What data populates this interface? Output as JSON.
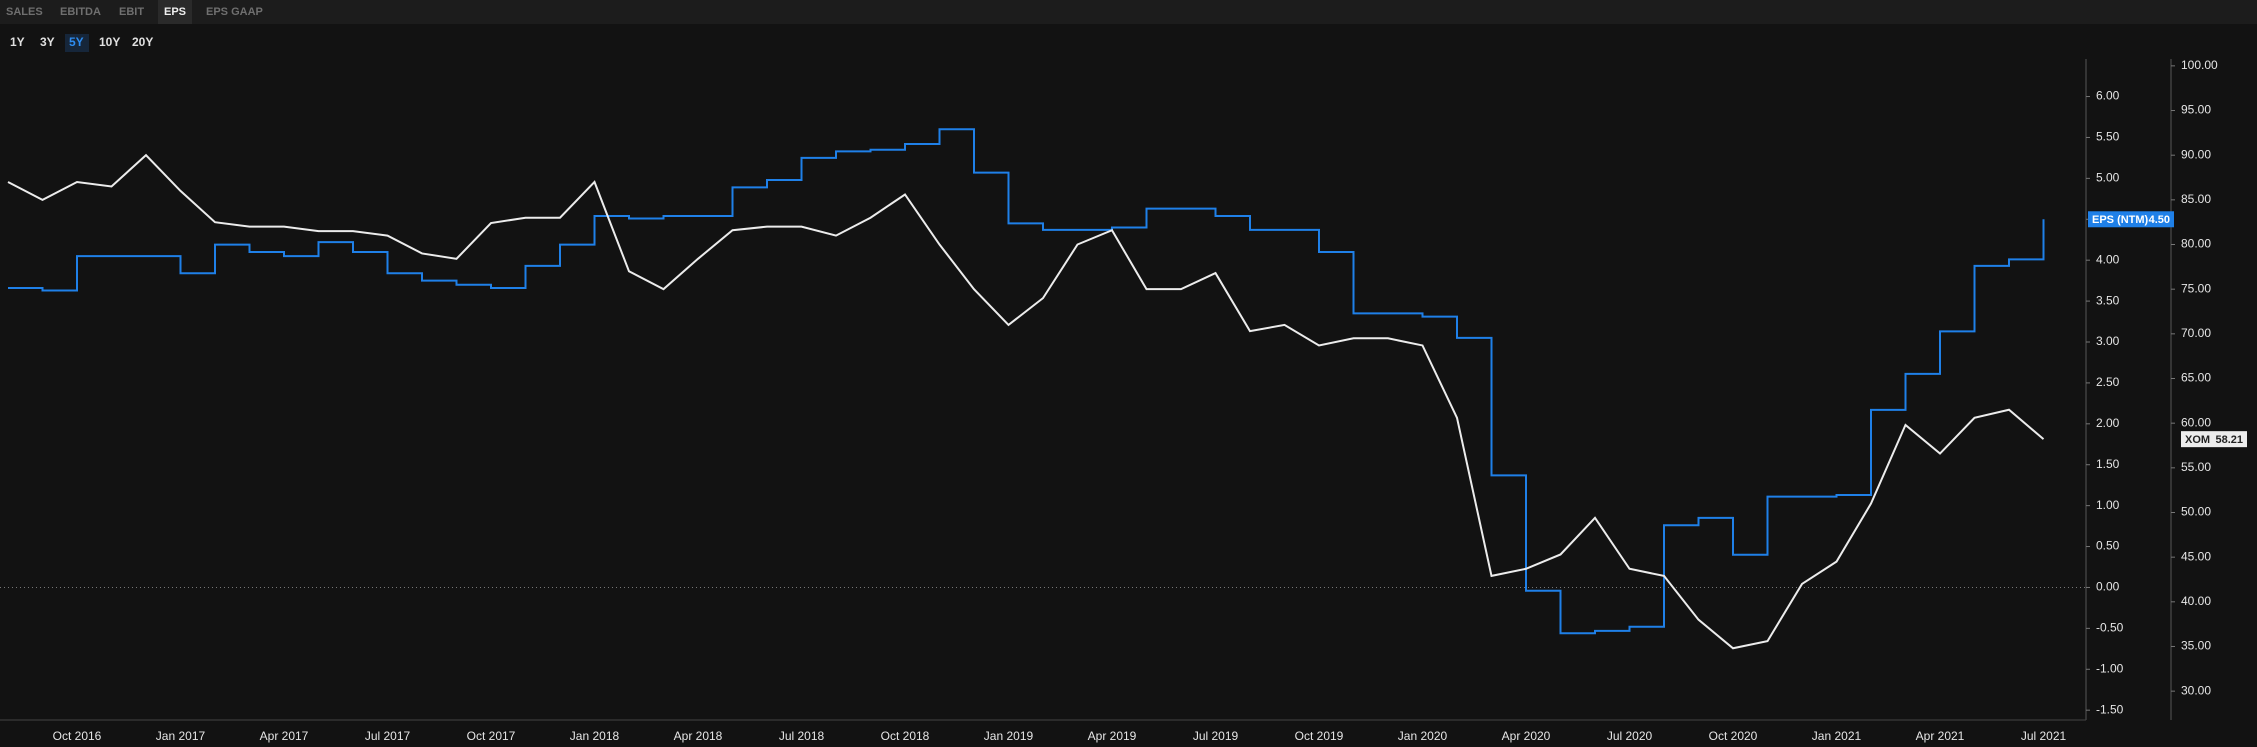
{
  "tabs": [
    {
      "label": "SALES"
    },
    {
      "label": "EBITDA"
    },
    {
      "label": "EBIT"
    },
    {
      "label": "EPS",
      "active": true
    },
    {
      "label": "EPS GAAP"
    }
  ],
  "periods": [
    {
      "label": "1Y"
    },
    {
      "label": "3Y"
    },
    {
      "label": "5Y",
      "active": true
    },
    {
      "label": "10Y"
    },
    {
      "label": "20Y"
    }
  ],
  "chart_data": {
    "type": "line",
    "zero_line": true,
    "categories": [
      null,
      null,
      "Oct 2016",
      null,
      null,
      "Jan 2017",
      null,
      null,
      "Apr 2017",
      null,
      null,
      "Jul 2017",
      null,
      null,
      "Oct 2017",
      null,
      null,
      "Jan 2018",
      null,
      null,
      "Apr 2018",
      null,
      null,
      "Jul 2018",
      null,
      null,
      "Oct 2018",
      null,
      null,
      "Jan 2019",
      null,
      null,
      "Apr 2019",
      null,
      null,
      "Jul 2019",
      null,
      null,
      "Oct 2019",
      null,
      null,
      "Jan 2020",
      null,
      null,
      "Apr 2020",
      null,
      null,
      "Jul 2020",
      null,
      null,
      "Oct 2020",
      null,
      null,
      "Jan 2021",
      null,
      null,
      "Apr 2021",
      null,
      null,
      "Jul 2021"
    ],
    "series": [
      {
        "name": "EPS (NTM)",
        "color": "#1f80e8",
        "step": true,
        "tag_text_color": "#ffffff",
        "values": [
          3.66,
          3.63,
          4.05,
          4.05,
          4.05,
          3.84,
          4.19,
          4.1,
          4.05,
          4.22,
          4.1,
          3.84,
          3.75,
          3.7,
          3.66,
          3.93,
          4.19,
          4.54,
          4.51,
          4.54,
          4.54,
          4.89,
          4.98,
          5.25,
          5.33,
          5.35,
          5.42,
          5.6,
          5.07,
          4.45,
          4.37,
          4.37,
          4.4,
          4.63,
          4.63,
          4.54,
          4.37,
          4.37,
          4.1,
          3.35,
          3.35,
          3.31,
          3.05,
          1.37,
          -0.04,
          -0.56,
          -0.53,
          -0.48,
          0.76,
          0.85,
          0.4,
          1.11,
          1.11,
          1.13,
          2.17,
          2.61,
          3.13,
          3.93,
          4.01,
          4.5
        ],
        "value_labels": [
          null,
          null,
          null,
          null,
          null,
          null,
          null,
          null,
          null,
          null,
          null,
          null,
          null,
          null,
          null,
          null,
          null,
          null,
          null,
          null,
          null,
          null,
          null,
          null,
          null,
          null,
          null,
          null,
          null,
          null,
          null,
          null,
          null,
          null,
          null,
          null,
          null,
          null,
          null,
          null,
          null,
          null,
          null,
          null,
          null,
          null,
          null,
          null,
          null,
          null,
          null,
          null,
          null,
          null,
          null,
          null,
          null,
          null,
          null,
          "4.50"
        ]
      },
      {
        "name": "XOM",
        "color": "#ececec",
        "axis": "y2",
        "tag_text_color": "#222222",
        "values": [
          87,
          85,
          87,
          86.5,
          90,
          86,
          82.5,
          82,
          82,
          81.5,
          81.5,
          81,
          79,
          78.4,
          82.4,
          83,
          83,
          87,
          77,
          75,
          78.4,
          81.6,
          82,
          82,
          81,
          83,
          85.6,
          80,
          75,
          71,
          74,
          80,
          81.6,
          75,
          75,
          76.8,
          70.3,
          71,
          68.7,
          69.5,
          69.5,
          68.7,
          60.6,
          42.9,
          43.7,
          45.3,
          49.4,
          43.7,
          42.9,
          38,
          34.8,
          35.6,
          42,
          44.5,
          51,
          59.8,
          56.6,
          60.6,
          61.5,
          58.21
        ]
      }
    ],
    "ylim": [
      -1.62,
      6.41
    ],
    "yticks": [
      {
        "value": 6,
        "label": "6.00"
      },
      {
        "value": 5.5,
        "label": "5.50"
      },
      {
        "value": 5,
        "label": "5.00"
      },
      {
        "value": 4.5,
        "label": "4.50"
      },
      {
        "value": 4,
        "label": "4.00"
      },
      {
        "value": 3.5,
        "label": "3.50"
      },
      {
        "value": 3,
        "label": "3.00"
      },
      {
        "value": 2.5,
        "label": "2.50"
      },
      {
        "value": 2,
        "label": "2.00"
      },
      {
        "value": 1.5,
        "label": "1.50"
      },
      {
        "value": 1,
        "label": "1.00"
      },
      {
        "value": 0.5,
        "label": "0.50"
      },
      {
        "value": 0,
        "label": "0.00"
      },
      {
        "value": -0.5,
        "label": "-0.50"
      },
      {
        "value": -1,
        "label": "-1.00"
      },
      {
        "value": -1.5,
        "label": "-1.50"
      }
    ],
    "y2lim": [
      26.77,
      100.32
    ],
    "y2ticks": [
      {
        "value": 100,
        "label": "100.00"
      },
      {
        "value": 95,
        "label": "95.00"
      },
      {
        "value": 90,
        "label": "90.00"
      },
      {
        "value": 85,
        "label": "85.00"
      },
      {
        "value": 80,
        "label": "80.00"
      },
      {
        "value": 75,
        "label": "75.00"
      },
      {
        "value": 70,
        "label": "70.00"
      },
      {
        "value": 65,
        "label": "65.00"
      },
      {
        "value": 60,
        "label": "60.00"
      },
      {
        "value": 55,
        "label": "55.00"
      },
      {
        "value": 50,
        "label": "50.00"
      },
      {
        "value": 45,
        "label": "45.00"
      },
      {
        "value": 40,
        "label": "40.00"
      },
      {
        "value": 35,
        "label": "35.00"
      },
      {
        "value": 30,
        "label": "30.00"
      }
    ]
  }
}
